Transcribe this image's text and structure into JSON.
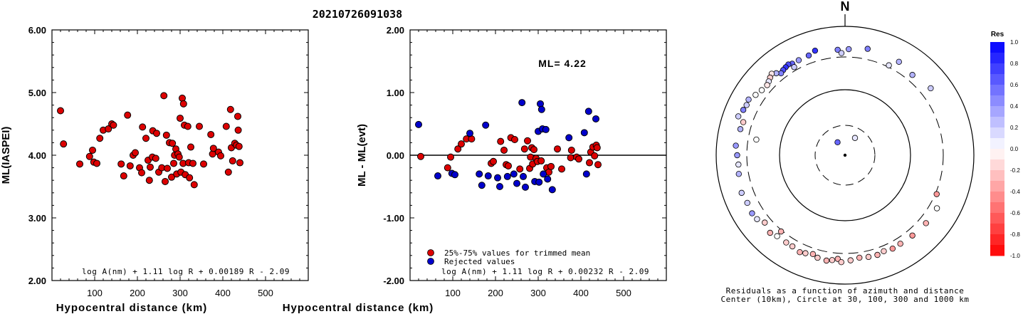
{
  "title": "20210726091038",
  "chart_data": [
    {
      "type": "scatter",
      "xlabel": "Hypocentral distance (km)",
      "ylabel": "ML(IASPEI)",
      "xlim": [
        0,
        600
      ],
      "ylim": [
        2.0,
        6.0
      ],
      "x_ticks": [
        "100",
        "200",
        "300",
        "400",
        "500"
      ],
      "y_ticks": [
        "2.00",
        "3.00",
        "4.00",
        "5.00",
        "6.00"
      ],
      "formula": "log A(nm) + 1.11 log R + 0.00189 R - 2.09",
      "colors": {
        "point": "#dd0000"
      },
      "points": [
        [
          20,
          4.71
        ],
        [
          27,
          4.18
        ],
        [
          65,
          3.86
        ],
        [
          88,
          3.98
        ],
        [
          95,
          4.08
        ],
        [
          98,
          3.89
        ],
        [
          105,
          3.87
        ],
        [
          112,
          4.27
        ],
        [
          120,
          4.4
        ],
        [
          132,
          4.42
        ],
        [
          140,
          4.5
        ],
        [
          144,
          4.48
        ],
        [
          162,
          3.86
        ],
        [
          168,
          3.67
        ],
        [
          177,
          4.64
        ],
        [
          183,
          3.83
        ],
        [
          190,
          4.0
        ],
        [
          195,
          4.04
        ],
        [
          205,
          3.8
        ],
        [
          210,
          3.72
        ],
        [
          212,
          4.45
        ],
        [
          220,
          4.27
        ],
        [
          225,
          3.92
        ],
        [
          228,
          3.6
        ],
        [
          230,
          3.81
        ],
        [
          235,
          3.97
        ],
        [
          236,
          4.39
        ],
        [
          243,
          3.95
        ],
        [
          245,
          4.35
        ],
        [
          250,
          3.73
        ],
        [
          257,
          3.8
        ],
        [
          262,
          4.95
        ],
        [
          265,
          3.58
        ],
        [
          268,
          4.32
        ],
        [
          270,
          3.79
        ],
        [
          275,
          4.2
        ],
        [
          280,
          3.65
        ],
        [
          282,
          4.19
        ],
        [
          285,
          3.87
        ],
        [
          287,
          4.0
        ],
        [
          290,
          4.1
        ],
        [
          292,
          3.7
        ],
        [
          295,
          4.02
        ],
        [
          298,
          3.97
        ],
        [
          300,
          4.59
        ],
        [
          302,
          3.73
        ],
        [
          305,
          4.91
        ],
        [
          307,
          3.87
        ],
        [
          308,
          4.82
        ],
        [
          310,
          4.48
        ],
        [
          312,
          3.69
        ],
        [
          318,
          4.46
        ],
        [
          320,
          3.88
        ],
        [
          322,
          3.64
        ],
        [
          325,
          4.13
        ],
        [
          330,
          3.87
        ],
        [
          333,
          3.53
        ],
        [
          345,
          4.46
        ],
        [
          355,
          3.86
        ],
        [
          372,
          4.33
        ],
        [
          376,
          4.02
        ],
        [
          378,
          4.11
        ],
        [
          390,
          4.05
        ],
        [
          395,
          3.99
        ],
        [
          408,
          4.46
        ],
        [
          413,
          3.73
        ],
        [
          418,
          4.73
        ],
        [
          420,
          4.12
        ],
        [
          423,
          3.91
        ],
        [
          428,
          4.19
        ],
        [
          432,
          4.16
        ],
        [
          435,
          4.62
        ],
        [
          436,
          4.4
        ],
        [
          438,
          4.14
        ],
        [
          440,
          3.88
        ]
      ]
    },
    {
      "type": "scatter",
      "xlabel": "Hypocentral distance (km)",
      "ylabel": "ML - ML(evt)",
      "xlim": [
        0,
        600
      ],
      "ylim": [
        -2.0,
        2.0
      ],
      "x_ticks": [
        "100",
        "200",
        "300",
        "400",
        "500"
      ],
      "y_ticks": [
        "-2.00",
        "-1.00",
        "0.00",
        "1.00",
        "2.00"
      ],
      "annotation": "ML= 4.22",
      "formula": "log A(nm) + 1.11 log R + 0.00232 R - 2.09",
      "legend": [
        "25%-75% values for trimmed mean",
        "Rejected values"
      ],
      "colors": {
        "trimmed": "#dd0000",
        "rejected": "#0000cc"
      },
      "series": [
        {
          "name": "25%-75% values for trimmed mean",
          "points": [
            [
              25,
              -0.02
            ],
            [
              88,
              -0.2
            ],
            [
              95,
              -0.03
            ],
            [
              112,
              0.1
            ],
            [
              120,
              0.18
            ],
            [
              132,
              0.26
            ],
            [
              144,
              0.26
            ],
            [
              190,
              -0.13
            ],
            [
              195,
              -0.1
            ],
            [
              212,
              0.22
            ],
            [
              220,
              0.08
            ],
            [
              225,
              -0.15
            ],
            [
              230,
              -0.17
            ],
            [
              236,
              0.28
            ],
            [
              245,
              0.25
            ],
            [
              257,
              -0.22
            ],
            [
              268,
              0.1
            ],
            [
              275,
              0.23
            ],
            [
              280,
              -0.21
            ],
            [
              282,
              -0.03
            ],
            [
              285,
              0.12
            ],
            [
              287,
              -0.14
            ],
            [
              290,
              0.09
            ],
            [
              295,
              -0.05
            ],
            [
              298,
              -0.1
            ],
            [
              307,
              -0.09
            ],
            [
              320,
              -0.2
            ],
            [
              325,
              -0.27
            ],
            [
              330,
              -0.18
            ],
            [
              345,
              0.1
            ],
            [
              355,
              -0.22
            ],
            [
              376,
              -0.04
            ],
            [
              378,
              0.08
            ],
            [
              390,
              -0.03
            ],
            [
              395,
              -0.06
            ],
            [
              420,
              -0.12
            ],
            [
              423,
              0.05
            ],
            [
              428,
              0.13
            ],
            [
              432,
              -0.01
            ],
            [
              436,
              0.16
            ],
            [
              438,
              0.12
            ],
            [
              440,
              -0.15
            ]
          ]
        },
        {
          "name": "Rejected values",
          "points": [
            [
              20,
              0.49
            ],
            [
              65,
              -0.33
            ],
            [
              98,
              -0.29
            ],
            [
              105,
              -0.31
            ],
            [
              140,
              0.35
            ],
            [
              162,
              -0.3
            ],
            [
              168,
              -0.48
            ],
            [
              177,
              0.48
            ],
            [
              183,
              -0.33
            ],
            [
              205,
              -0.36
            ],
            [
              210,
              -0.5
            ],
            [
              228,
              -0.34
            ],
            [
              243,
              -0.3
            ],
            [
              250,
              -0.45
            ],
            [
              262,
              0.84
            ],
            [
              265,
              -0.34
            ],
            [
              270,
              -0.51
            ],
            [
              292,
              -0.42
            ],
            [
              300,
              0.38
            ],
            [
              302,
              -0.43
            ],
            [
              305,
              0.82
            ],
            [
              308,
              0.73
            ],
            [
              310,
              0.42
            ],
            [
              312,
              -0.3
            ],
            [
              318,
              0.41
            ],
            [
              322,
              -0.38
            ],
            [
              333,
              -0.55
            ],
            [
              372,
              0.28
            ],
            [
              408,
              0.36
            ],
            [
              413,
              -0.3
            ],
            [
              418,
              0.7
            ],
            [
              435,
              0.58
            ]
          ]
        }
      ]
    },
    {
      "type": "scatter",
      "subtype": "polar",
      "north_label": "N",
      "caption_line1": "Residuals as a function of azimuth and distance",
      "caption_line2": "Center (10km), Circle at 30, 100, 300 and 1000 km",
      "colorbar_title": "Res",
      "colorbar_ticks": [
        "1.0",
        "0.8",
        "0.6",
        "0.4",
        "0.2",
        "0.0",
        "-0.2",
        "-0.4",
        "-0.6",
        "-0.8",
        "-1.0"
      ],
      "rings_km": [
        10,
        30,
        100,
        300,
        1000
      ],
      "points": [
        {
          "az": 30,
          "dist": 20,
          "res": 0.1
        },
        {
          "az": 330,
          "dist": 15,
          "res": 0.6
        },
        {
          "az": 12,
          "dist": 540,
          "res": 0.5
        },
        {
          "az": -16,
          "dist": 540,
          "res": 0.8
        },
        {
          "az": -4,
          "dist": 470,
          "res": 0.5
        },
        {
          "az": -20,
          "dist": 480,
          "res": 0.6
        },
        {
          "az": -26,
          "dist": 470,
          "res": 0.4
        },
        {
          "az": -30,
          "dist": 470,
          "res": 0.6
        },
        {
          "az": -32,
          "dist": 500,
          "res": 0.7
        },
        {
          "az": -34,
          "dist": 480,
          "res": 0.8
        },
        {
          "az": -36,
          "dist": 460,
          "res": 0.7
        },
        {
          "az": -38,
          "dist": 430,
          "res": 0.5
        },
        {
          "az": -40,
          "dist": 500,
          "res": 0.3
        },
        {
          "az": -42,
          "dist": 560,
          "res": -0.1
        },
        {
          "az": -44,
          "dist": 520,
          "res": -0.2
        },
        {
          "az": -46,
          "dist": 480,
          "res": 0.1
        },
        {
          "az": -48,
          "dist": 450,
          "res": -0.1
        },
        {
          "az": -52,
          "dist": 470,
          "res": 0.0
        },
        {
          "az": -56,
          "dist": 520,
          "res": 0.0
        },
        {
          "az": -60,
          "dist": 600,
          "res": 0.3
        },
        {
          "az": -63,
          "dist": 580,
          "res": 0.2
        },
        {
          "az": -66,
          "dist": 600,
          "res": 0.5
        },
        {
          "az": -70,
          "dist": 650,
          "res": 0.2
        },
        {
          "az": -72,
          "dist": 500,
          "res": -0.2
        },
        {
          "az": -80,
          "dist": 250,
          "res": 0.0
        },
        {
          "az": -76,
          "dist": 520,
          "res": 0.3
        },
        {
          "az": -100,
          "dist": 520,
          "res": 0.3
        },
        {
          "az": -110,
          "dist": 570,
          "res": 0.2
        },
        {
          "az": -116,
          "dist": 540,
          "res": 0.2
        },
        {
          "az": -122,
          "dist": 560,
          "res": 0.4
        },
        {
          "az": -126,
          "dist": 540,
          "res": 0.1
        },
        {
          "az": -130,
          "dist": 450,
          "res": -0.2
        },
        {
          "az": -136,
          "dist": 520,
          "res": -0.3
        },
        {
          "az": -140,
          "dist": 470,
          "res": 0.0
        },
        {
          "az": -146,
          "dist": 460,
          "res": -0.2
        },
        {
          "az": -150,
          "dist": 460,
          "res": -0.2
        },
        {
          "az": -155,
          "dist": 500,
          "res": -0.3
        },
        {
          "az": -158,
          "dist": 470,
          "res": -0.2
        },
        {
          "az": -162,
          "dist": 430,
          "res": -0.3
        },
        {
          "az": -165,
          "dist": 480,
          "res": -0.2
        },
        {
          "az": -170,
          "dist": 500,
          "res": -0.3
        },
        {
          "az": -173,
          "dist": 470,
          "res": -0.2
        },
        {
          "az": -176,
          "dist": 430,
          "res": -0.3
        },
        {
          "az": -178,
          "dist": 500,
          "res": -0.2
        },
        {
          "az": 177,
          "dist": 460,
          "res": -0.2
        },
        {
          "az": 172,
          "dist": 420,
          "res": -0.3
        },
        {
          "az": 167,
          "dist": 440,
          "res": -0.2
        },
        {
          "az": 162,
          "dist": 450,
          "res": -0.3
        },
        {
          "az": 158,
          "dist": 420,
          "res": -0.2
        },
        {
          "az": 153,
          "dist": 450,
          "res": -0.4
        },
        {
          "az": 148,
          "dist": 440,
          "res": -0.3
        },
        {
          "az": 140,
          "dist": 450,
          "res": -0.4
        },
        {
          "az": 130,
          "dist": 470,
          "res": -0.3
        },
        {
          "az": 120,
          "dist": 480,
          "res": 0.0
        },
        {
          "az": 113,
          "dist": 330,
          "res": -0.4
        },
        {
          "az": -140,
          "dist": 330,
          "res": -0.3
        },
        {
          "az": -90,
          "dist": 520,
          "res": 0.4
        },
        {
          "az": -85,
          "dist": 560,
          "res": 0.4
        },
        {
          "az": -95,
          "dist": 500,
          "res": 0.1
        },
        {
          "az": 40,
          "dist": 450,
          "res": 0.3
        },
        {
          "az": 52,
          "dist": 540,
          "res": 0.2
        },
        {
          "az": 26,
          "dist": 340,
          "res": 0.1
        },
        {
          "az": 30,
          "dist": 520,
          "res": 0.3
        },
        {
          "az": -2,
          "dist": 390,
          "res": 0.2
        },
        {
          "az": -30,
          "dist": 380,
          "res": 0.2
        },
        {
          "az": 2,
          "dist": 480,
          "res": 0.4
        }
      ]
    }
  ]
}
